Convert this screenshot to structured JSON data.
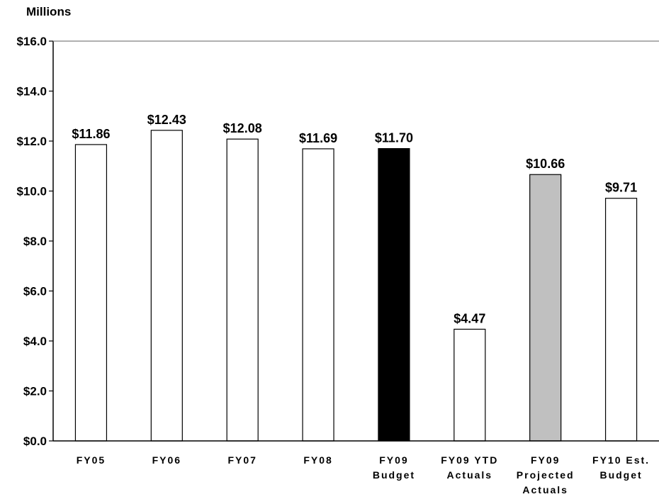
{
  "chart_data": {
    "type": "bar",
    "ylabel": "Millions",
    "ylim": [
      0,
      16
    ],
    "yticks": [
      "$16.0",
      "$14.0",
      "$12.0",
      "$10.0",
      "$8.0",
      "$6.0",
      "$4.0",
      "$2.0",
      "$0.0"
    ],
    "ytick_values": [
      16,
      14,
      12,
      10,
      8,
      6,
      4,
      2,
      0
    ],
    "grid": false,
    "categories": [
      [
        "FY05"
      ],
      [
        "FY06"
      ],
      [
        "FY07"
      ],
      [
        "FY08"
      ],
      [
        "FY09",
        "Budget"
      ],
      [
        "FY09 YTD",
        "Actuals"
      ],
      [
        "FY09",
        "Projected",
        "Actuals"
      ],
      [
        "FY10 Est.",
        "Budget"
      ]
    ],
    "values": [
      11.86,
      12.43,
      12.08,
      11.69,
      11.7,
      4.47,
      10.66,
      9.71
    ],
    "data_labels": [
      "$11.86",
      "$12.43",
      "$12.08",
      "$11.69",
      "$11.70",
      "$4.47",
      "$10.66",
      "$9.71"
    ],
    "bar_colors": [
      "#ffffff",
      "#ffffff",
      "#ffffff",
      "#ffffff",
      "#000000",
      "#ffffff",
      "#c0c0c0",
      "#ffffff"
    ]
  }
}
